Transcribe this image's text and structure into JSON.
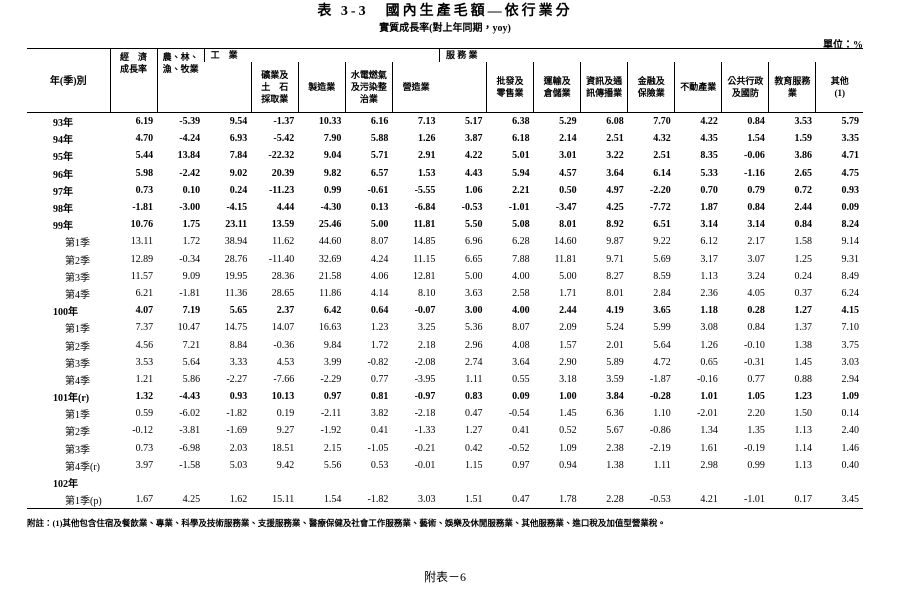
{
  "header": {
    "title": "表 3-3　國內生產毛額—依行業分",
    "subtitle": "實質成長率(對上年同期，yoy)",
    "unit": "單位：%"
  },
  "table": {
    "stub_header": "年(季)別",
    "columns": [
      {
        "label": [
          "經　濟",
          "成長率"
        ]
      },
      {
        "label": [
          "農、林、",
          "漁、牧業"
        ]
      },
      {
        "label": [
          "工　業"
        ],
        "sub": [
          [
            "礦業及",
            "土　石",
            "採取業"
          ],
          [
            "製造業"
          ],
          [
            "水電燃氣",
            "及污染整",
            "治業"
          ],
          [
            "營造業"
          ]
        ]
      },
      {
        "label": [
          "服 務 業"
        ],
        "sub": [
          [
            "批發及",
            "零售業"
          ],
          [
            "運輸及",
            "倉儲業"
          ],
          [
            "資訊及通",
            "訊傳播業"
          ],
          [
            "金融及",
            "保險業"
          ],
          [
            "不動產業"
          ],
          [
            "公共行政",
            "及國防"
          ],
          [
            "教育服務",
            "業"
          ],
          [
            "其他",
            "(1)"
          ]
        ]
      }
    ],
    "rows": [
      {
        "label": "93年",
        "bold": true,
        "values": [
          "6.19",
          "-5.39",
          "9.54",
          "-1.37",
          "10.33",
          "6.16",
          "7.13",
          "5.17",
          "6.38",
          "5.29",
          "6.08",
          "7.70",
          "4.22",
          "0.84",
          "3.53",
          "5.79"
        ]
      },
      {
        "label": "94年",
        "bold": true,
        "values": [
          "4.70",
          "-4.24",
          "6.93",
          "-5.42",
          "7.90",
          "5.88",
          "1.26",
          "3.87",
          "6.18",
          "2.14",
          "2.51",
          "4.32",
          "4.35",
          "1.54",
          "1.59",
          "3.35"
        ]
      },
      {
        "label": "95年",
        "bold": true,
        "values": [
          "5.44",
          "13.84",
          "7.84",
          "-22.32",
          "9.04",
          "5.71",
          "2.91",
          "4.22",
          "5.01",
          "3.01",
          "3.22",
          "2.51",
          "8.35",
          "-0.06",
          "3.86",
          "4.71"
        ]
      },
      {
        "label": "96年",
        "bold": true,
        "values": [
          "5.98",
          "-2.42",
          "9.02",
          "20.39",
          "9.82",
          "6.57",
          "1.53",
          "4.43",
          "5.94",
          "4.57",
          "3.64",
          "6.14",
          "5.33",
          "-1.16",
          "2.65",
          "4.75"
        ]
      },
      {
        "label": "97年",
        "bold": true,
        "values": [
          "0.73",
          "0.10",
          "0.24",
          "-11.23",
          "0.99",
          "-0.61",
          "-5.55",
          "1.06",
          "2.21",
          "0.50",
          "4.97",
          "-2.20",
          "0.70",
          "0.79",
          "0.72",
          "0.93"
        ]
      },
      {
        "label": "98年",
        "bold": true,
        "values": [
          "-1.81",
          "-3.00",
          "-4.15",
          "4.44",
          "-4.30",
          "0.13",
          "-6.84",
          "-0.53",
          "-1.01",
          "-3.47",
          "4.25",
          "-7.72",
          "1.87",
          "0.84",
          "2.44",
          "0.09"
        ]
      },
      {
        "label": "99年",
        "bold": true,
        "values": [
          "10.76",
          "1.75",
          "23.11",
          "13.59",
          "25.46",
          "5.00",
          "11.81",
          "5.50",
          "5.08",
          "8.01",
          "8.92",
          "6.51",
          "3.14",
          "3.14",
          "0.84",
          "8.24"
        ]
      },
      {
        "label": "第1季",
        "bold": false,
        "values": [
          "13.11",
          "1.72",
          "38.94",
          "11.62",
          "44.60",
          "8.07",
          "14.85",
          "6.96",
          "6.28",
          "14.60",
          "9.87",
          "9.22",
          "6.12",
          "2.17",
          "1.58",
          "9.14"
        ]
      },
      {
        "label": "第2季",
        "bold": false,
        "values": [
          "12.89",
          "-0.34",
          "28.76",
          "-11.40",
          "32.69",
          "4.24",
          "11.15",
          "6.65",
          "7.88",
          "11.81",
          "9.71",
          "5.69",
          "3.17",
          "3.07",
          "1.25",
          "9.31"
        ]
      },
      {
        "label": "第3季",
        "bold": false,
        "values": [
          "11.57",
          "9.09",
          "19.95",
          "28.36",
          "21.58",
          "4.06",
          "12.81",
          "5.00",
          "4.00",
          "5.00",
          "8.27",
          "8.59",
          "1.13",
          "3.24",
          "0.24",
          "8.49"
        ]
      },
      {
        "label": "第4季",
        "bold": false,
        "values": [
          "6.21",
          "-1.81",
          "11.36",
          "28.65",
          "11.86",
          "4.14",
          "8.10",
          "3.63",
          "2.58",
          "1.71",
          "8.01",
          "2.84",
          "2.36",
          "4.05",
          "0.37",
          "6.24"
        ]
      },
      {
        "label": "100年",
        "bold": true,
        "values": [
          "4.07",
          "7.19",
          "5.65",
          "2.37",
          "6.42",
          "0.64",
          "-0.07",
          "3.00",
          "4.00",
          "2.44",
          "4.19",
          "3.65",
          "1.18",
          "0.28",
          "1.27",
          "4.15"
        ]
      },
      {
        "label": "第1季",
        "bold": false,
        "values": [
          "7.37",
          "10.47",
          "14.75",
          "14.07",
          "16.63",
          "1.23",
          "3.25",
          "5.36",
          "8.07",
          "2.09",
          "5.24",
          "5.99",
          "3.08",
          "0.84",
          "1.37",
          "7.10"
        ]
      },
      {
        "label": "第2季",
        "bold": false,
        "values": [
          "4.56",
          "7.21",
          "8.84",
          "-0.36",
          "9.84",
          "1.72",
          "2.18",
          "2.96",
          "4.08",
          "1.57",
          "2.01",
          "5.64",
          "1.26",
          "-0.10",
          "1.38",
          "3.75"
        ]
      },
      {
        "label": "第3季",
        "bold": false,
        "values": [
          "3.53",
          "5.64",
          "3.33",
          "4.53",
          "3.99",
          "-0.82",
          "-2.08",
          "2.74",
          "3.64",
          "2.90",
          "5.89",
          "4.72",
          "0.65",
          "-0.31",
          "1.45",
          "3.03"
        ]
      },
      {
        "label": "第4季",
        "bold": false,
        "values": [
          "1.21",
          "5.86",
          "-2.27",
          "-7.66",
          "-2.29",
          "0.77",
          "-3.95",
          "1.11",
          "0.55",
          "3.18",
          "3.59",
          "-1.87",
          "-0.16",
          "0.77",
          "0.88",
          "2.94"
        ]
      },
      {
        "label": "101年(r)",
        "bold": true,
        "values": [
          "1.32",
          "-4.43",
          "0.93",
          "10.13",
          "0.97",
          "0.81",
          "-0.97",
          "0.83",
          "0.09",
          "1.00",
          "3.84",
          "-0.28",
          "1.01",
          "1.05",
          "1.23",
          "1.09"
        ]
      },
      {
        "label": "第1季",
        "bold": false,
        "values": [
          "0.59",
          "-6.02",
          "-1.82",
          "0.19",
          "-2.11",
          "3.82",
          "-2.18",
          "0.47",
          "-0.54",
          "1.45",
          "6.36",
          "1.10",
          "-2.01",
          "2.20",
          "1.50",
          "0.14"
        ]
      },
      {
        "label": "第2季",
        "bold": false,
        "values": [
          "-0.12",
          "-3.81",
          "-1.69",
          "9.27",
          "-1.92",
          "0.41",
          "-1.33",
          "1.27",
          "0.41",
          "0.52",
          "5.67",
          "-0.86",
          "1.34",
          "1.35",
          "1.13",
          "2.40"
        ]
      },
      {
        "label": "第3季",
        "bold": false,
        "values": [
          "0.73",
          "-6.98",
          "2.03",
          "18.51",
          "2.15",
          "-1.05",
          "-0.21",
          "0.42",
          "-0.52",
          "1.09",
          "2.38",
          "-2.19",
          "1.61",
          "-0.19",
          "1.14",
          "1.46"
        ]
      },
      {
        "label": "第4季(r)",
        "bold": false,
        "values": [
          "3.97",
          "-1.58",
          "5.03",
          "9.42",
          "5.56",
          "0.53",
          "-0.01",
          "1.15",
          "0.97",
          "0.94",
          "1.38",
          "1.11",
          "2.98",
          "0.99",
          "1.13",
          "0.40"
        ]
      },
      {
        "label": "102年",
        "bold": true,
        "values": []
      },
      {
        "label": "第1季(p)",
        "bold": false,
        "values": [
          "1.67",
          "4.25",
          "1.62",
          "15.11",
          "1.54",
          "-1.82",
          "3.03",
          "1.51",
          "0.47",
          "1.78",
          "2.28",
          "-0.53",
          "4.21",
          "-1.01",
          "0.17",
          "3.45"
        ]
      }
    ]
  },
  "footnote": "附註：(1)其他包含住宿及餐飲業、專業、科學及技術服務業、支援服務業、醫療保健及社會工作服務業、藝術、娛樂及休閒服務業、其他服務業、進口稅及加值型營業稅。",
  "page_number": "附表－6"
}
